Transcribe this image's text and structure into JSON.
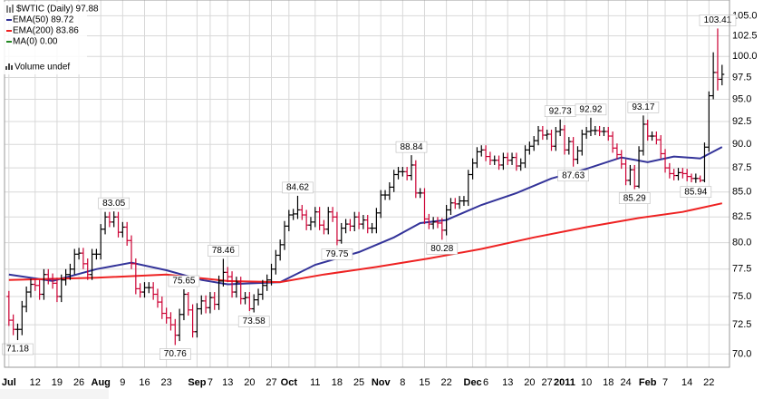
{
  "chart_data": {
    "type": "ohlc",
    "symbol_label": "$WTIC (Daily) 97.88",
    "volume_label": "Volume undef",
    "up_color": "#000000",
    "down_color": "#cc0033",
    "log_scale": true,
    "grid": true,
    "xlim": [
      -1,
      164.7
    ],
    "ylim": [
      68.9,
      107
    ],
    "yticks": [
      {
        "value": 70,
        "label": "70.0"
      },
      {
        "value": 72.5,
        "label": "72.5"
      },
      {
        "value": 75,
        "label": "75.0"
      },
      {
        "value": 77.5,
        "label": "77.5"
      },
      {
        "value": 80,
        "label": "80.0"
      },
      {
        "value": 82.5,
        "label": "82.5"
      },
      {
        "value": 85,
        "label": "85.0"
      },
      {
        "value": 87.5,
        "label": "87.5"
      },
      {
        "value": 90,
        "label": "90.0"
      },
      {
        "value": 92.5,
        "label": "92.5"
      },
      {
        "value": 95,
        "label": "95.0"
      },
      {
        "value": 97.5,
        "label": "97.5"
      },
      {
        "value": 100,
        "label": "100.0"
      },
      {
        "value": 102.5,
        "label": "102.5"
      },
      {
        "value": 105,
        "label": "105.0"
      }
    ],
    "xticks": [
      {
        "value": 0,
        "label": "Jul"
      },
      {
        "value": 6,
        "label": "12"
      },
      {
        "value": 11,
        "label": "19"
      },
      {
        "value": 16,
        "label": "26"
      },
      {
        "value": 21,
        "label": "Aug"
      },
      {
        "value": 26,
        "label": "9"
      },
      {
        "value": 31,
        "label": "16"
      },
      {
        "value": 36,
        "label": "23"
      },
      {
        "value": 43,
        "label": "Sep"
      },
      {
        "value": 46,
        "label": "7"
      },
      {
        "value": 50,
        "label": "13"
      },
      {
        "value": 55,
        "label": "20"
      },
      {
        "value": 60,
        "label": "27"
      },
      {
        "value": 64,
        "label": "Oct"
      },
      {
        "value": 70,
        "label": "11"
      },
      {
        "value": 75,
        "label": "18"
      },
      {
        "value": 80,
        "label": "25"
      },
      {
        "value": 85,
        "label": "Nov"
      },
      {
        "value": 90,
        "label": "8"
      },
      {
        "value": 95,
        "label": "15"
      },
      {
        "value": 100,
        "label": "22"
      },
      {
        "value": 106,
        "label": "Dec"
      },
      {
        "value": 109,
        "label": "6"
      },
      {
        "value": 114,
        "label": "13"
      },
      {
        "value": 119,
        "label": "20"
      },
      {
        "value": 123,
        "label": "27"
      },
      {
        "value": 127,
        "label": "2011"
      },
      {
        "value": 132,
        "label": "10"
      },
      {
        "value": 137,
        "label": "18"
      },
      {
        "value": 141,
        "label": "24"
      },
      {
        "value": 146,
        "label": "Feb"
      },
      {
        "value": 150,
        "label": "7"
      },
      {
        "value": 155,
        "label": "14"
      },
      {
        "value": 160,
        "label": "22"
      }
    ],
    "ohlc": [
      [
        75.0,
        75.5,
        72.4,
        72.9
      ],
      [
        72.9,
        73.4,
        71.6,
        72.1
      ],
      [
        72.1,
        72.6,
        71.18,
        72.1
      ],
      [
        72.1,
        74.6,
        71.6,
        74.1
      ],
      [
        74.1,
        75.9,
        73.6,
        75.4
      ],
      [
        75.4,
        76.6,
        74.9,
        76.1
      ],
      [
        76.1,
        76.6,
        75.5,
        76.0
      ],
      [
        76.0,
        76.5,
        74.7,
        75.2
      ],
      [
        75.2,
        77.5,
        74.7,
        77.0
      ],
      [
        77.0,
        77.5,
        76.1,
        76.6
      ],
      [
        76.6,
        77.1,
        75.7,
        76.2
      ],
      [
        76.2,
        76.7,
        74.5,
        75.0
      ],
      [
        75.0,
        77.0,
        74.5,
        76.5
      ],
      [
        76.5,
        77.5,
        76.0,
        77.0
      ],
      [
        77.0,
        78.0,
        76.5,
        77.5
      ],
      [
        77.5,
        79.4,
        77.0,
        78.9
      ],
      [
        78.9,
        79.5,
        78.4,
        79.0
      ],
      [
        79.0,
        79.5,
        77.5,
        78.0
      ],
      [
        78.0,
        78.5,
        76.5,
        77.0
      ],
      [
        77.0,
        79.4,
        76.5,
        78.9
      ],
      [
        78.9,
        79.4,
        78.4,
        78.9
      ],
      [
        78.9,
        81.8,
        78.4,
        81.3
      ],
      [
        81.3,
        83.0,
        80.8,
        82.5
      ],
      [
        82.5,
        83.0,
        81.5,
        82.0
      ],
      [
        82.0,
        83.05,
        81.5,
        82.5
      ],
      [
        82.5,
        83.0,
        80.5,
        81.0
      ],
      [
        81.0,
        82.0,
        80.5,
        81.5
      ],
      [
        81.5,
        82.0,
        79.7,
        80.2
      ],
      [
        80.2,
        80.7,
        77.5,
        78.0
      ],
      [
        78.0,
        78.5,
        75.2,
        75.7
      ],
      [
        75.7,
        76.2,
        74.9,
        75.4
      ],
      [
        75.4,
        76.3,
        74.9,
        75.8
      ],
      [
        75.8,
        76.3,
        75.3,
        75.8
      ],
      [
        75.8,
        76.3,
        74.7,
        75.2
      ],
      [
        75.2,
        75.7,
        74.0,
        74.5
      ],
      [
        74.5,
        75.0,
        73.0,
        73.5
      ],
      [
        73.5,
        74.0,
        72.6,
        73.1
      ],
      [
        73.1,
        73.6,
        72.0,
        72.5
      ],
      [
        72.5,
        73.0,
        70.76,
        71.6
      ],
      [
        71.6,
        73.9,
        71.1,
        73.4
      ],
      [
        73.4,
        75.65,
        72.9,
        75.2
      ],
      [
        75.2,
        75.4,
        73.3,
        73.8
      ],
      [
        73.8,
        74.3,
        71.4,
        71.9
      ],
      [
        71.9,
        74.4,
        71.4,
        73.9
      ],
      [
        73.9,
        75.1,
        73.4,
        74.6
      ],
      [
        74.6,
        75.1,
        73.5,
        74.0
      ],
      [
        74.0,
        75.4,
        73.5,
        74.9
      ],
      [
        74.9,
        75.4,
        73.8,
        74.3
      ],
      [
        74.3,
        76.9,
        73.8,
        76.4
      ],
      [
        76.4,
        78.46,
        75.9,
        77.2
      ],
      [
        77.2,
        77.7,
        76.3,
        76.8
      ],
      [
        76.8,
        77.3,
        74.9,
        75.4
      ],
      [
        75.4,
        76.8,
        74.9,
        76.3
      ],
      [
        76.3,
        76.8,
        74.3,
        74.8
      ],
      [
        74.8,
        75.4,
        74.3,
        74.9
      ],
      [
        74.9,
        75.4,
        73.7,
        73.9
      ],
      [
        73.9,
        75.2,
        73.58,
        74.7
      ],
      [
        74.7,
        75.7,
        74.2,
        75.2
      ],
      [
        75.2,
        76.5,
        74.7,
        76.0
      ],
      [
        76.0,
        77.0,
        75.5,
        76.5
      ],
      [
        76.5,
        78.0,
        76.0,
        77.5
      ],
      [
        77.5,
        79.3,
        77.0,
        78.8
      ],
      [
        78.8,
        80.3,
        78.3,
        79.8
      ],
      [
        79.8,
        82.1,
        79.3,
        81.6
      ],
      [
        81.6,
        83.2,
        81.1,
        82.7
      ],
      [
        82.7,
        83.3,
        82.2,
        82.8
      ],
      [
        82.8,
        84.62,
        82.3,
        83.2
      ],
      [
        83.2,
        83.7,
        82.2,
        82.7
      ],
      [
        82.7,
        83.2,
        81.2,
        81.7
      ],
      [
        81.7,
        82.5,
        81.2,
        82.0
      ],
      [
        82.0,
        83.5,
        81.5,
        83.0
      ],
      [
        83.0,
        83.5,
        81.2,
        81.7
      ],
      [
        81.7,
        82.2,
        80.8,
        81.3
      ],
      [
        81.3,
        83.5,
        80.8,
        83.0
      ],
      [
        83.0,
        83.5,
        82.0,
        82.5
      ],
      [
        82.5,
        83.0,
        79.75,
        80.2
      ],
      [
        80.2,
        81.9,
        79.9,
        81.4
      ],
      [
        81.4,
        82.3,
        80.9,
        81.8
      ],
      [
        81.8,
        82.3,
        81.1,
        81.6
      ],
      [
        81.6,
        83.0,
        81.1,
        82.5
      ],
      [
        82.5,
        83.0,
        81.3,
        81.8
      ],
      [
        81.8,
        82.7,
        81.3,
        82.2
      ],
      [
        82.2,
        82.7,
        80.9,
        81.4
      ],
      [
        81.4,
        81.9,
        80.9,
        81.4
      ],
      [
        81.4,
        83.4,
        80.9,
        82.9
      ],
      [
        82.9,
        85.2,
        82.4,
        84.7
      ],
      [
        84.7,
        85.2,
        84.2,
        84.7
      ],
      [
        84.7,
        86.0,
        84.2,
        85.5
      ],
      [
        85.5,
        87.3,
        85.0,
        86.8
      ],
      [
        86.8,
        87.6,
        86.3,
        87.1
      ],
      [
        87.1,
        87.6,
        86.6,
        87.1
      ],
      [
        87.1,
        87.6,
        86.2,
        86.7
      ],
      [
        86.7,
        88.84,
        86.2,
        87.8
      ],
      [
        87.8,
        88.3,
        84.4,
        84.9
      ],
      [
        84.9,
        85.4,
        84.4,
        84.9
      ],
      [
        84.9,
        85.4,
        81.8,
        82.3
      ],
      [
        82.3,
        82.8,
        81.3,
        81.8
      ],
      [
        81.8,
        82.5,
        81.3,
        82.0
      ],
      [
        82.0,
        82.5,
        81.4,
        81.9
      ],
      [
        81.9,
        82.4,
        80.28,
        81.2
      ],
      [
        81.2,
        83.7,
        80.7,
        83.2
      ],
      [
        83.2,
        84.4,
        82.7,
        83.9
      ],
      [
        83.9,
        84.4,
        83.3,
        83.8
      ],
      [
        83.8,
        84.6,
        83.3,
        84.1
      ],
      [
        84.1,
        84.6,
        83.6,
        84.1
      ],
      [
        84.1,
        87.3,
        83.6,
        86.8
      ],
      [
        86.8,
        88.5,
        86.3,
        88.0
      ],
      [
        88.0,
        89.7,
        87.5,
        89.2
      ],
      [
        89.2,
        89.9,
        88.7,
        89.4
      ],
      [
        89.4,
        89.9,
        88.2,
        88.7
      ],
      [
        88.7,
        89.2,
        87.8,
        88.3
      ],
      [
        88.3,
        88.8,
        87.8,
        88.3
      ],
      [
        88.3,
        88.8,
        87.3,
        87.8
      ],
      [
        87.8,
        89.1,
        87.3,
        88.6
      ],
      [
        88.6,
        89.1,
        87.8,
        88.3
      ],
      [
        88.3,
        89.1,
        87.8,
        88.6
      ],
      [
        88.6,
        89.1,
        87.2,
        87.7
      ],
      [
        87.7,
        88.5,
        87.2,
        88.0
      ],
      [
        88.0,
        89.9,
        87.5,
        89.4
      ],
      [
        89.4,
        90.3,
        88.9,
        89.8
      ],
      [
        89.8,
        90.9,
        89.3,
        90.4
      ],
      [
        90.4,
        92.0,
        89.9,
        91.5
      ],
      [
        91.5,
        92.0,
        90.5,
        91.0
      ],
      [
        91.0,
        91.6,
        90.5,
        91.1
      ],
      [
        91.1,
        91.6,
        89.3,
        89.8
      ],
      [
        89.8,
        91.9,
        89.3,
        91.4
      ],
      [
        91.4,
        92.73,
        90.9,
        91.6
      ],
      [
        91.6,
        92.1,
        88.9,
        89.4
      ],
      [
        89.4,
        90.8,
        88.9,
        90.3
      ],
      [
        90.3,
        90.8,
        87.63,
        88.4
      ],
      [
        88.4,
        89.8,
        87.9,
        89.3
      ],
      [
        89.3,
        91.6,
        88.8,
        91.1
      ],
      [
        91.1,
        91.9,
        90.6,
        91.4
      ],
      [
        91.4,
        92.92,
        90.9,
        91.5
      ],
      [
        91.5,
        92.0,
        91.0,
        91.5
      ],
      [
        91.5,
        92.0,
        90.9,
        91.4
      ],
      [
        91.4,
        91.9,
        90.9,
        91.4
      ],
      [
        91.4,
        91.9,
        90.4,
        90.9
      ],
      [
        90.9,
        91.4,
        89.1,
        89.6
      ],
      [
        89.6,
        90.1,
        88.4,
        88.9
      ],
      [
        88.9,
        89.4,
        87.4,
        87.9
      ],
      [
        87.9,
        88.4,
        85.7,
        86.2
      ],
      [
        86.2,
        87.8,
        85.7,
        87.3
      ],
      [
        87.3,
        87.8,
        85.29,
        85.6
      ],
      [
        85.6,
        89.8,
        85.4,
        89.3
      ],
      [
        89.3,
        93.17,
        88.8,
        92.2
      ],
      [
        92.2,
        92.7,
        90.4,
        90.9
      ],
      [
        90.9,
        91.4,
        90.4,
        90.9
      ],
      [
        90.9,
        91.4,
        90.0,
        90.5
      ],
      [
        90.5,
        91.0,
        88.5,
        89.0
      ],
      [
        89.0,
        89.5,
        87.0,
        87.5
      ],
      [
        87.5,
        88.0,
        86.4,
        86.9
      ],
      [
        86.9,
        87.4,
        86.2,
        86.7
      ],
      [
        86.7,
        87.5,
        86.2,
        87.0
      ],
      [
        87.0,
        87.5,
        86.4,
        86.9
      ],
      [
        86.9,
        87.4,
        86.1,
        86.6
      ],
      [
        86.6,
        86.9,
        86.0,
        86.4
      ],
      [
        86.4,
        86.9,
        85.94,
        86.4
      ],
      [
        86.4,
        86.7,
        86.0,
        86.2
      ],
      [
        86.2,
        90.2,
        86.0,
        89.7
      ],
      [
        89.7,
        95.9,
        89.2,
        95.4
      ],
      [
        95.4,
        100.5,
        95.0,
        98.1
      ],
      [
        98.1,
        103.41,
        96.0,
        97.3
      ],
      [
        97.3,
        99.0,
        96.6,
        97.88
      ]
    ],
    "annotations": [
      {
        "x": 2,
        "value": 71.18
      },
      {
        "x": 24,
        "value": 83.05
      },
      {
        "x": 38,
        "value": 70.76
      },
      {
        "x": 40,
        "value": 75.65
      },
      {
        "x": 49,
        "value": 78.46
      },
      {
        "x": 56,
        "value": 73.58
      },
      {
        "x": 66,
        "value": 84.62
      },
      {
        "x": 75,
        "value": 79.75
      },
      {
        "x": 92,
        "value": 88.84
      },
      {
        "x": 99,
        "value": 80.28
      },
      {
        "x": 126,
        "value": 92.73
      },
      {
        "x": 129,
        "value": 87.63
      },
      {
        "x": 133,
        "value": 92.92
      },
      {
        "x": 143,
        "value": 85.29
      },
      {
        "x": 145,
        "value": 93.17
      },
      {
        "x": 157,
        "value": 85.94
      },
      {
        "x": 162,
        "value": 103.41
      }
    ],
    "series": [
      {
        "name": "EMA(50) 89.72",
        "color": "#333399",
        "x": [
          0,
          10,
          20,
          28,
          36,
          44,
          50,
          62,
          70,
          80,
          88,
          94,
          100,
          108,
          116,
          124,
          132,
          140,
          146,
          152,
          158,
          163
        ],
        "values": [
          77.0,
          76.4,
          77.5,
          78.1,
          77.4,
          76.5,
          76.1,
          76.3,
          77.9,
          79.1,
          80.5,
          81.9,
          82.2,
          83.7,
          84.9,
          86.4,
          87.4,
          88.6,
          88.1,
          88.7,
          88.5,
          89.72
        ]
      },
      {
        "name": "EMA(200) 83.86",
        "color": "#ee2222",
        "x": [
          0,
          20,
          36,
          50,
          62,
          72,
          84,
          96,
          108,
          120,
          132,
          144,
          154,
          163
        ],
        "values": [
          76.5,
          76.7,
          77.0,
          76.4,
          76.3,
          77.0,
          77.7,
          78.5,
          79.4,
          80.5,
          81.5,
          82.4,
          83.0,
          83.86
        ]
      },
      {
        "name": "MA(0) 0.00",
        "color": "#228822"
      }
    ]
  }
}
